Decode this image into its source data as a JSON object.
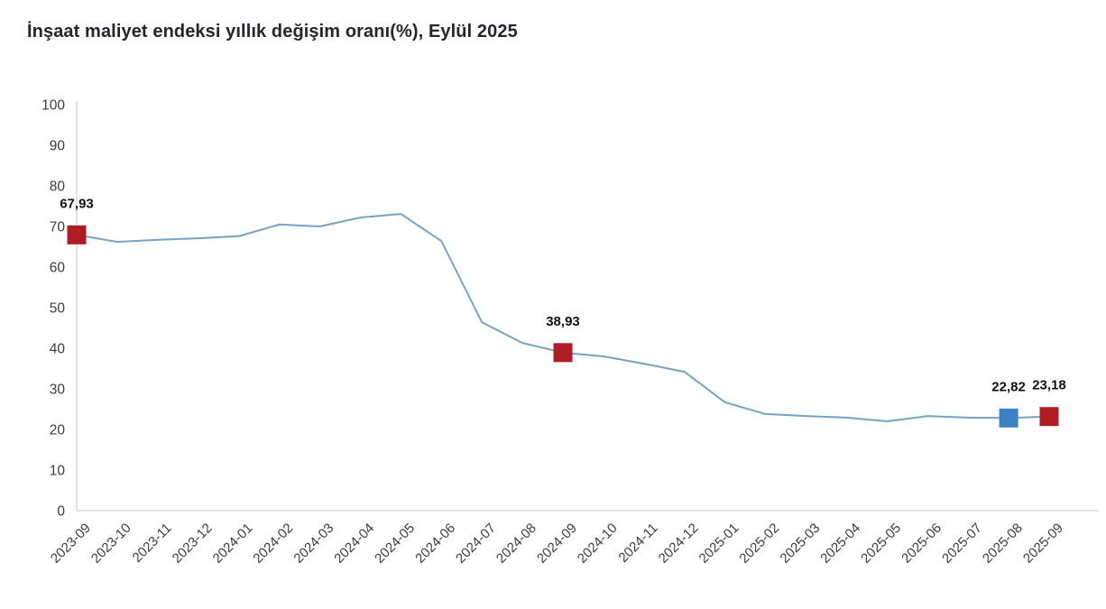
{
  "title": "İnşaat maliyet endeksi yıllık değişim oranı(%), Eylül 2025",
  "colors": {
    "line": "#74a3c4",
    "marker_red": "#b01c24",
    "marker_blue": "#3b82c4",
    "axis_line": "#d8d8d8",
    "tick_text": "#3c3c3c",
    "label_text": "#111111",
    "title_text": "#23262e",
    "background": "#ffffff"
  },
  "chart_data": {
    "type": "line",
    "title": "İnşaat maliyet endeksi yıllık değişim oranı(%), Eylül 2025",
    "xlabel": "",
    "ylabel": "",
    "ylim": [
      0,
      100
    ],
    "ytick_step": 10,
    "grid": false,
    "legend": false,
    "x": [
      "2023-09",
      "2023-10",
      "2023-11",
      "2023-12",
      "2024-01",
      "2024-02",
      "2024-03",
      "2024-04",
      "2024-05",
      "2024-06",
      "2024-07",
      "2024-08",
      "2024-09",
      "2024-10",
      "2024-11",
      "2024-12",
      "2025-01",
      "2025-02",
      "2025-03",
      "2025-04",
      "2025-05",
      "2025-06",
      "2025-07",
      "2025-08",
      "2025-09"
    ],
    "series": [
      {
        "name": "İnşaat maliyet endeksi yıllık değişim oranı (%)",
        "values": [
          67.93,
          66.2,
          66.7,
          67.1,
          67.6,
          70.5,
          70.0,
          72.2,
          73.1,
          66.4,
          46.4,
          41.3,
          38.93,
          38.0,
          36.2,
          34.2,
          26.7,
          23.8,
          23.3,
          22.9,
          22.0,
          23.3,
          22.9,
          22.82,
          23.18
        ]
      }
    ],
    "annotations": [
      {
        "x": "2023-09",
        "value": 67.93,
        "label": "67,93",
        "marker": "red"
      },
      {
        "x": "2024-09",
        "value": 38.93,
        "label": "38,93",
        "marker": "red"
      },
      {
        "x": "2025-08",
        "value": 22.82,
        "label": "22,82",
        "marker": "blue"
      },
      {
        "x": "2025-09",
        "value": 23.18,
        "label": "23,18",
        "marker": "red"
      }
    ]
  }
}
